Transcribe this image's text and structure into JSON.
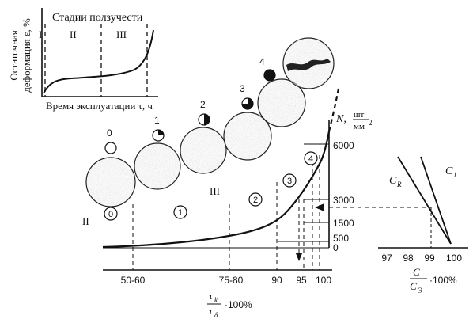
{
  "inset": {
    "title": "Стадии ползучести",
    "ylabel_line1": "Остаточная",
    "ylabel_line2": "деформация ε, %",
    "xlabel": "Время эксплуатации τ, ч",
    "stages": [
      "I",
      "II",
      "III"
    ]
  },
  "micro_labels": [
    "0",
    "1",
    "2",
    "3",
    "4"
  ],
  "main": {
    "zone_markers": [
      "II",
      "III"
    ],
    "circled_zones": [
      "0",
      "1",
      "2",
      "3",
      "4"
    ],
    "y_axis_title": "N,",
    "y_unit_num": "шт",
    "y_unit_den": "мм",
    "y_unit_exp": "2",
    "y_ticks": [
      "6000",
      "3000",
      "1500",
      "500",
      "0"
    ],
    "x_ticks": [
      "50-60",
      "75-80",
      "90",
      "95",
      "100"
    ],
    "x_label_num": "τ",
    "x_label_num_sub": "k",
    "x_label_den": "τ",
    "x_label_den_sub": "δ",
    "x_label_suffix": "·100%"
  },
  "right": {
    "line_labels": [
      "C",
      "C"
    ],
    "line_subs": [
      "R",
      "1"
    ],
    "x_ticks": [
      "97",
      "98",
      "99",
      "100"
    ],
    "x_label_num": "C",
    "x_label_den": "C",
    "x_label_den_sub": "Э",
    "x_label_suffix": "·100%"
  }
}
